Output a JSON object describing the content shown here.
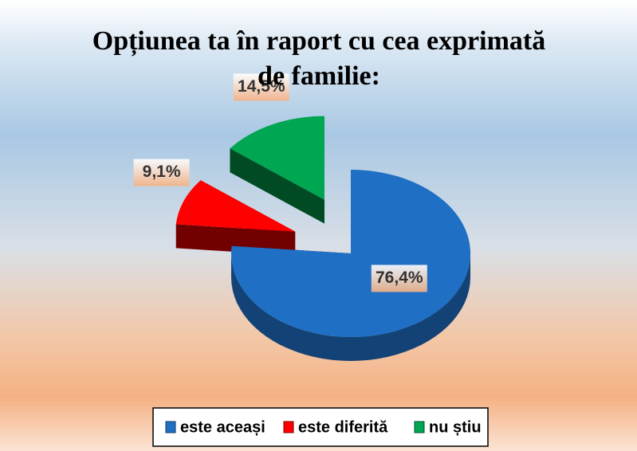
{
  "chart_data": {
    "type": "pie3d",
    "title": "Opțiunea ta în raport cu cea exprimată de familie:",
    "categories": [
      "este aceași",
      "este diferită",
      "nu știu"
    ],
    "values": [
      76.4,
      9.1,
      14.5
    ],
    "value_labels": [
      "76,4%",
      "9,1%",
      "14,5%"
    ],
    "colors": [
      "#1f6fc4",
      "#ff0000",
      "#00a651"
    ],
    "legend": "bottom"
  }
}
